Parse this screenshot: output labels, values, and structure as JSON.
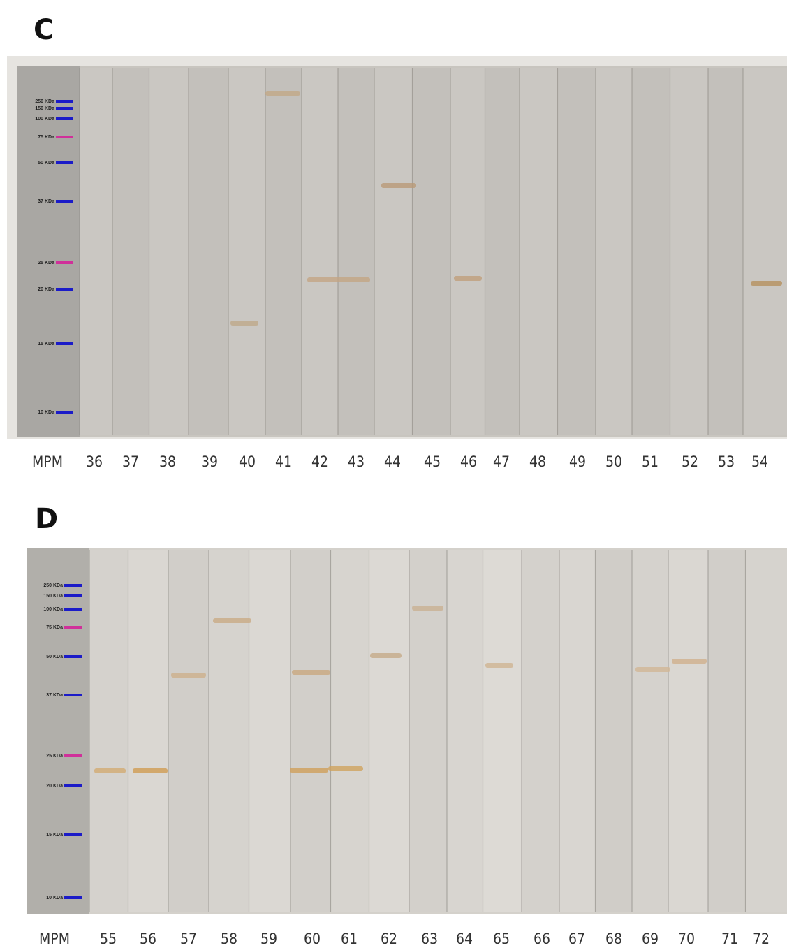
{
  "panels": [
    {
      "label": "C",
      "marker_labels": [
        "250 KDa",
        "150 KDa",
        "100 KDa",
        "75 KDa",
        "50 KDa",
        "37 KDa",
        "25 KDa",
        "20 KDa",
        "15 KDa",
        "10 KDa"
      ],
      "lane_labels": [
        "MPM",
        "36",
        "37",
        "38",
        "39",
        "40",
        "41",
        "42",
        "43",
        "44",
        "45",
        "46",
        "47",
        "48",
        "49",
        "50",
        "51",
        "52",
        "53",
        "54"
      ]
    },
    {
      "label": "D",
      "marker_labels": [
        "250 KDa",
        "150 KDa",
        "100 KDa",
        "75 KDa",
        "50 KDa",
        "37 KDa",
        "25 KDa",
        "20 KDa",
        "15 KDa",
        "10 KDa"
      ],
      "lane_labels": [
        "MPM",
        "55",
        "56",
        "57",
        "58",
        "59",
        "60",
        "61",
        "62",
        "63",
        "64",
        "65",
        "66",
        "67",
        "68",
        "69",
        "70",
        "71",
        "72"
      ]
    }
  ]
}
